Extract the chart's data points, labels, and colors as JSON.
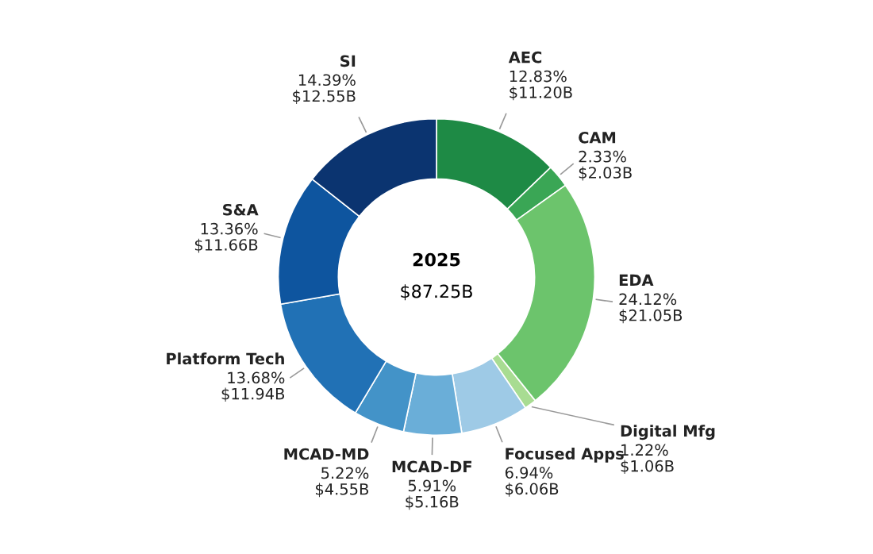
{
  "chart_data": {
    "type": "donut",
    "categories": [
      "AEC",
      "CAM",
      "EDA",
      "Digital Mfg",
      "Focused Apps",
      "MCAD-DF",
      "MCAD-MD",
      "Platform Tech",
      "S&A",
      "SI"
    ],
    "values": [
      12.83,
      2.33,
      24.12,
      1.22,
      6.94,
      5.91,
      5.22,
      13.68,
      13.36,
      14.39
    ],
    "value_labels": [
      "12.83%\n$11.20B",
      "2.33%\n$2.03B",
      "24.12%\n$21.05B",
      "1.22%\n$1.06B",
      "6.94%\n$6.06B",
      "5.91%\n$5.16B",
      "5.22%\n$4.55B",
      "13.68%\n$11.94B",
      "13.36%\n$11.66B",
      "14.39%\n$12.55B"
    ],
    "colors": [
      "#1e8a45",
      "#3aa655",
      "#6cc46c",
      "#a8dc92",
      "#9ecae6",
      "#6aaed8",
      "#4393c8",
      "#2171b5",
      "#0e559f",
      "#0b3470"
    ],
    "annotations": [
      "2025\n$87.25B"
    ],
    "legend": false
  }
}
